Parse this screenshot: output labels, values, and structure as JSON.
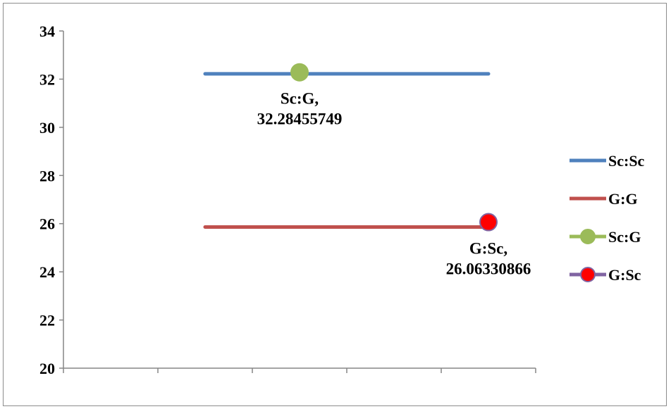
{
  "chart_data": {
    "type": "line",
    "title": "",
    "xlabel": "",
    "ylabel": "",
    "ylim": [
      20,
      34
    ],
    "yticks": [
      "20",
      "22",
      "24",
      "26",
      "28",
      "30",
      "32",
      "34"
    ],
    "x_category_count": 5,
    "grid": false,
    "legend_position": "right",
    "series": [
      {
        "name": "Sc:Sc",
        "kind": "line",
        "x": [
          2,
          5
        ],
        "y": [
          32.22,
          32.22
        ],
        "color": "#4f81bd"
      },
      {
        "name": "G:G",
        "kind": "line",
        "x": [
          2,
          5
        ],
        "y": [
          25.86,
          25.86
        ],
        "color": "#c0504d"
      },
      {
        "name": "Sc:G",
        "kind": "point",
        "x": [
          3
        ],
        "y": [
          32.28455749
        ],
        "color": "#9bbb59",
        "edge": "#9bbb59",
        "label_lines": [
          "Sc:G,",
          "32.28455749"
        ]
      },
      {
        "name": "G:Sc",
        "kind": "point",
        "x": [
          5
        ],
        "y": [
          26.06330866
        ],
        "color": "#ff0000",
        "edge": "#8064a2",
        "label_lines": [
          "G:Sc,",
          "26.06330866"
        ]
      }
    ]
  }
}
